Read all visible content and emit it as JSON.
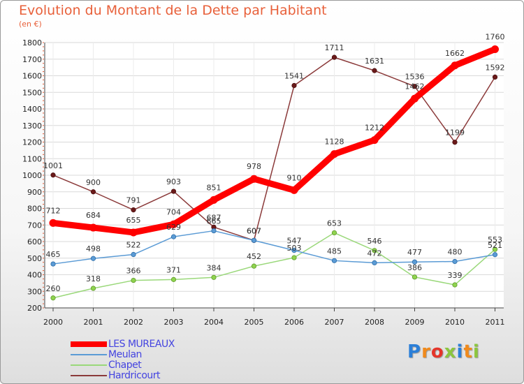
{
  "page": {
    "title": "Evolution du Montant de la Dette par Habitant",
    "subtitle": "(en €)",
    "brand": "Proxiti",
    "brand_letter_colors": [
      "#2b7fd8",
      "#f08a1c",
      "#e5352a",
      "#8cc63f",
      "#2b7fd8",
      "#f08a1c",
      "#8cc63f"
    ]
  },
  "chart_data": {
    "type": "line",
    "x": [
      "2000",
      "2001",
      "2002",
      "2003",
      "2004",
      "2005",
      "2006",
      "2007",
      "2008",
      "2009",
      "2010",
      "2011"
    ],
    "ylim": [
      200,
      1800
    ],
    "yticks": [
      "200",
      "300",
      "400",
      "500",
      "600",
      "700",
      "800",
      "900",
      "1000",
      "1100",
      "1200",
      "1300",
      "1400",
      "1500",
      "1600",
      "1700",
      "1800"
    ],
    "grid": "horizontal",
    "legend_position": "bottom-left",
    "series": [
      {
        "name": "LES MUREAUX",
        "color": "#ff0000",
        "values": [
          712,
          684,
          655,
          704,
          851,
          978,
          910,
          1128,
          1212,
          1462,
          1662,
          1760
        ],
        "labels": [
          "712",
          "684",
          "655",
          "704",
          "851",
          "978",
          "910",
          "1128",
          "1212",
          "1462",
          "1662",
          "1760"
        ]
      },
      {
        "name": "Meulan",
        "color": "#5b9bd5",
        "values": [
          465,
          498,
          522,
          629,
          665,
          607,
          547,
          485,
          472,
          477,
          480,
          521
        ],
        "labels": [
          "465",
          "498",
          "522",
          "629",
          "665",
          "607",
          "547",
          "485",
          "472",
          "477",
          "480",
          "521"
        ]
      },
      {
        "name": "Chapet",
        "color": "#9ad87a",
        "values": [
          260,
          318,
          366,
          371,
          384,
          452,
          503,
          653,
          546,
          386,
          339,
          553
        ],
        "labels": [
          "260",
          "318",
          "366",
          "371",
          "384",
          "452",
          "503",
          "653",
          "546",
          "386",
          "339",
          "553"
        ]
      },
      {
        "name": "Hardricourt",
        "color": "#8b3a3a",
        "values": [
          1001,
          900,
          791,
          903,
          687,
          607,
          1541,
          1711,
          1631,
          1536,
          1199,
          1592
        ],
        "labels": [
          "1001",
          "900",
          "791",
          "903",
          "687",
          "607",
          "1541",
          "1711",
          "1631",
          "1536",
          "1199",
          "1592"
        ]
      }
    ]
  }
}
